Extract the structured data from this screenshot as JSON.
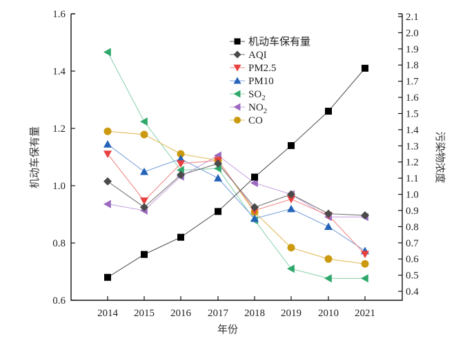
{
  "chart_data": {
    "type": "line",
    "title": "",
    "xlabel": "年份",
    "ylabel": "机动车保有量",
    "y2label": "污染物浓度",
    "categories": [
      "2014",
      "2015",
      "2016",
      "2017",
      "2018",
      "2019",
      "2010",
      "2021"
    ],
    "ylim": [
      0.6,
      1.6
    ],
    "y2lim": [
      0.4,
      2.1
    ],
    "yticks": [
      "0.6",
      "0.8",
      "1.0",
      "1.2",
      "1.4",
      "1.6"
    ],
    "y2ticks": [
      "0.4",
      "0.5",
      "0.6",
      "0.7",
      "0.8",
      "0.9",
      "1.0",
      "1.1",
      "1.2",
      "1.3",
      "1.4",
      "1.5",
      "1.6",
      "1.7",
      "1.8",
      "1.9",
      "2.0",
      "2.1"
    ],
    "legend_position": "top-center",
    "series": [
      {
        "name": "机动车保有量",
        "axis": "left",
        "marker": "square",
        "color": "#000000",
        "line_color": "#555555",
        "values": [
          0.68,
          0.76,
          0.82,
          0.91,
          1.03,
          1.14,
          1.26,
          1.41
        ]
      },
      {
        "name": "AQI",
        "axis": "right",
        "marker": "diamond",
        "color": "#4a4a4a",
        "line_color": "#777777",
        "values": [
          1.08,
          0.92,
          1.12,
          1.19,
          0.92,
          1.0,
          0.88,
          0.87
        ]
      },
      {
        "name": "PM2.5",
        "axis": "right",
        "marker": "triangle-down",
        "color": "#e8403f",
        "line_color": "#f08a88",
        "values": [
          1.25,
          0.96,
          1.19,
          1.21,
          0.9,
          0.97,
          0.87,
          0.63
        ]
      },
      {
        "name": "PM10",
        "axis": "right",
        "marker": "triangle-up",
        "color": "#2563b8",
        "line_color": "#7ea4de",
        "values": [
          1.31,
          1.14,
          1.22,
          1.1,
          0.85,
          0.91,
          0.8,
          0.65
        ]
      },
      {
        "name": "SO2",
        "sub": "2",
        "base": "SO",
        "axis": "right",
        "marker": "triangle-left",
        "color": "#2ea86a",
        "line_color": "#8fd4b0",
        "values": [
          1.88,
          1.45,
          1.15,
          1.16,
          0.84,
          0.54,
          0.48,
          0.48
        ]
      },
      {
        "name": "NO2",
        "sub": "2",
        "base": "NO",
        "axis": "right",
        "marker": "triangle-left",
        "color": "#9b6ac0",
        "line_color": "#c9a8e0",
        "values": [
          0.94,
          0.9,
          1.11,
          1.24,
          1.07,
          1.0,
          0.86,
          0.86
        ]
      },
      {
        "name": "CO",
        "axis": "right",
        "marker": "circle",
        "color": "#cc9a10",
        "line_color": "#e2bc5a",
        "values": [
          1.39,
          1.37,
          1.25,
          1.21,
          0.89,
          0.67,
          0.6,
          0.57
        ]
      }
    ]
  }
}
